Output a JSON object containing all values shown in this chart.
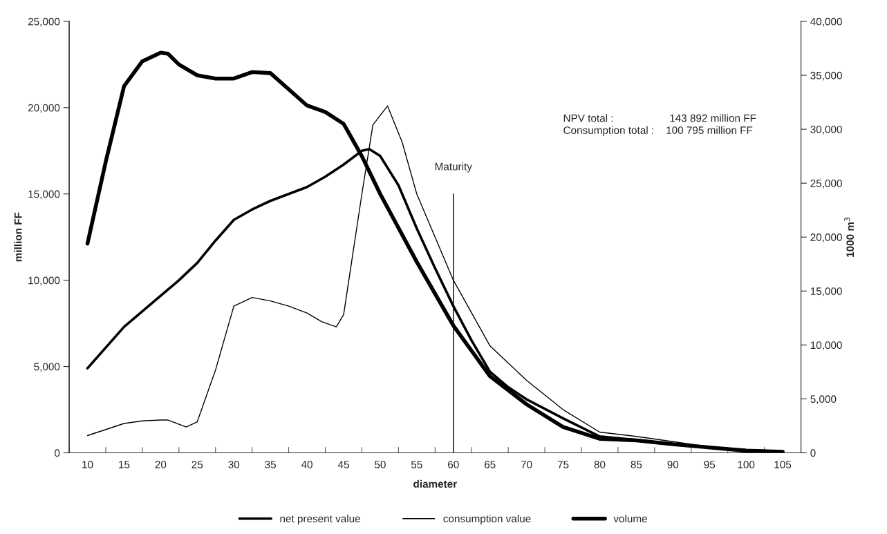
{
  "chart_data": {
    "type": "line",
    "xlabel": "diameter",
    "ylabel": "million FF",
    "y2label": "1000 m$^{3}$",
    "series": [
      {
        "name": "net present value",
        "color": "#000000",
        "x": [
          10,
          12.5,
          15,
          17.5,
          20,
          22.5,
          25,
          27.5,
          30,
          32.5,
          35,
          37.5,
          40,
          42.5,
          45,
          47.5,
          48.5,
          50,
          52.5,
          55,
          57.5,
          60,
          62.5,
          65,
          67.5,
          70,
          75,
          80,
          85,
          90,
          95,
          100,
          105
        ],
        "values": [
          4900,
          6100,
          7300,
          8200,
          9100,
          10000,
          11000,
          12300,
          13500,
          14100,
          14600,
          15000,
          15400,
          16000,
          16700,
          17500,
          17600,
          17200,
          15500,
          13000,
          10700,
          8500,
          6500,
          4700,
          3800,
          3100,
          2000,
          950,
          750,
          500,
          300,
          150,
          80
        ]
      },
      {
        "name": "consumption value",
        "color": "#000000",
        "x": [
          10,
          15,
          17.5,
          20,
          21,
          23.5,
          25,
          27.5,
          30,
          32.5,
          35,
          37.5,
          40,
          42,
          44,
          45,
          47.5,
          49,
          51,
          53,
          55,
          60,
          65,
          70,
          75,
          80,
          85,
          90,
          95,
          100,
          105
        ],
        "values": [
          1000,
          1700,
          1850,
          1900,
          1900,
          1500,
          1800,
          4800,
          8500,
          9000,
          8800,
          8500,
          8100,
          7600,
          7300,
          8000,
          15000,
          19000,
          20100,
          18000,
          15000,
          10000,
          6200,
          4200,
          2500,
          1200,
          950,
          650,
          350,
          200,
          100
        ]
      },
      {
        "name": "volume",
        "color": "#000000",
        "axis": "y2",
        "x": [
          10,
          12.5,
          15,
          17.5,
          20,
          21,
          22.5,
          25,
          27.5,
          30,
          32.5,
          35,
          37.5,
          40,
          42.5,
          45,
          47.5,
          50,
          55,
          60,
          65,
          70,
          75,
          80,
          85,
          90,
          95,
          100,
          105
        ],
        "values": [
          19400,
          27000,
          34000,
          36300,
          37100,
          37000,
          36000,
          35000,
          34700,
          34700,
          35300,
          35200,
          33700,
          32200,
          31600,
          30500,
          27500,
          24000,
          17700,
          11800,
          7100,
          4500,
          2400,
          1300,
          1150,
          800,
          500,
          200,
          100
        ]
      }
    ],
    "xlim": [
      7.5,
      107.5
    ],
    "xticks": [
      10,
      15,
      20,
      25,
      30,
      35,
      40,
      45,
      50,
      55,
      60,
      65,
      70,
      75,
      80,
      85,
      90,
      95,
      100,
      105
    ],
    "ylim": [
      0,
      25000
    ],
    "yticks": [
      {
        "value": 0,
        "label": "0"
      },
      {
        "value": 5000,
        "label": "5,000"
      },
      {
        "value": 10000,
        "label": "10,000"
      },
      {
        "value": 15000,
        "label": "15,000"
      },
      {
        "value": 20000,
        "label": "20,000"
      },
      {
        "value": 25000,
        "label": "25,000"
      }
    ],
    "y2lim": [
      0,
      40000
    ],
    "y2ticks": [
      {
        "value": 0,
        "label": "0"
      },
      {
        "value": 5000,
        "label": "5,000"
      },
      {
        "value": 10000,
        "label": "10,000"
      },
      {
        "value": 15000,
        "label": "15,000"
      },
      {
        "value": 20000,
        "label": "20,000"
      },
      {
        "value": 25000,
        "label": "25,000"
      },
      {
        "value": 30000,
        "label": "30,000"
      },
      {
        "value": 35000,
        "label": "35,000"
      },
      {
        "value": 40000,
        "label": "40,000"
      }
    ],
    "ref_lines": [
      {
        "axis": "x",
        "value": 60,
        "label": "Maturity",
        "color": "#000000"
      }
    ],
    "annotations": [
      "NPV total :                   143 892 million FF\nConsumption total :    100 795 million FF"
    ],
    "legend": "bottom",
    "grid": false,
    "marker": "none",
    "line_style": "solid"
  }
}
